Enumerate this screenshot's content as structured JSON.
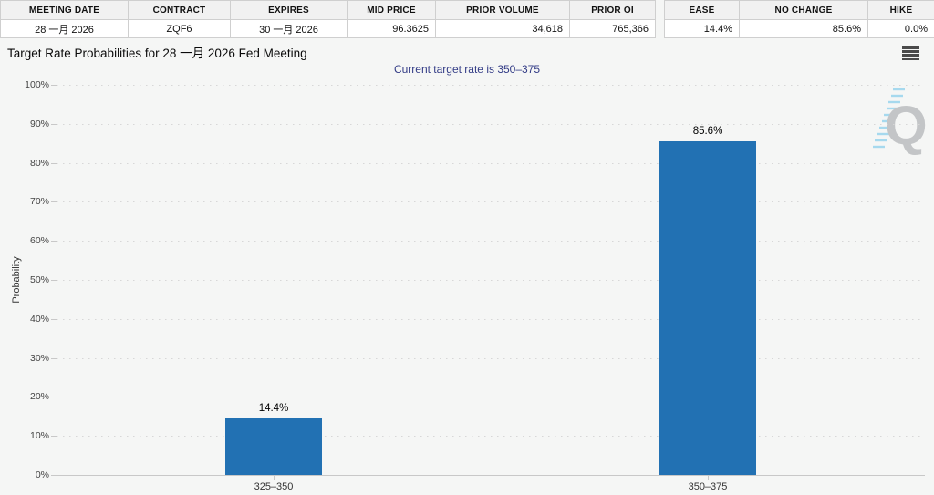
{
  "summary_table": {
    "headers": [
      "MEETING DATE",
      "CONTRACT",
      "EXPIRES",
      "MID PRICE",
      "PRIOR VOLUME",
      "PRIOR OI"
    ],
    "values": [
      "28 一月 2026",
      "ZQF6",
      "30 一月 2026",
      "96.3625",
      "34,618",
      "765,366"
    ]
  },
  "probability_summary": {
    "headers": [
      "EASE",
      "NO CHANGE",
      "HIKE"
    ],
    "values": [
      "14.4%",
      "85.6%",
      "0.0%"
    ]
  },
  "chart": {
    "title": "Target Rate Probabilities for 28 一月 2026 Fed Meeting",
    "subtitle": "Current target rate is 350–375",
    "menu_icon": "hamburger-menu-icon",
    "watermark_letter": "Q"
  },
  "chart_data": {
    "type": "bar",
    "title": "Target Rate Probabilities for 28 一月 2026 Fed Meeting",
    "subtitle": "Current target rate is 350–375",
    "categories": [
      "325–350",
      "350–375"
    ],
    "values": [
      14.4,
      85.6
    ],
    "value_labels": [
      "14.4%",
      "85.6%"
    ],
    "xlabel": "",
    "ylabel": "Probability",
    "ylim": [
      0,
      100
    ],
    "ytick_labels": [
      "0%",
      "10%",
      "20%",
      "30%",
      "40%",
      "50%",
      "60%",
      "70%",
      "80%",
      "90%",
      "100%"
    ],
    "grid": true,
    "legend": false
  },
  "colors": {
    "bar": "#2271b3",
    "subtitle_text": "#333c86",
    "axis_line": "#c8c8c8",
    "grid_dot": "#d7d7d7",
    "watermark_letter": "#c3c5c7",
    "watermark_hatch": "#a6d9ee",
    "table_header_bg": "#f1f1f1"
  }
}
